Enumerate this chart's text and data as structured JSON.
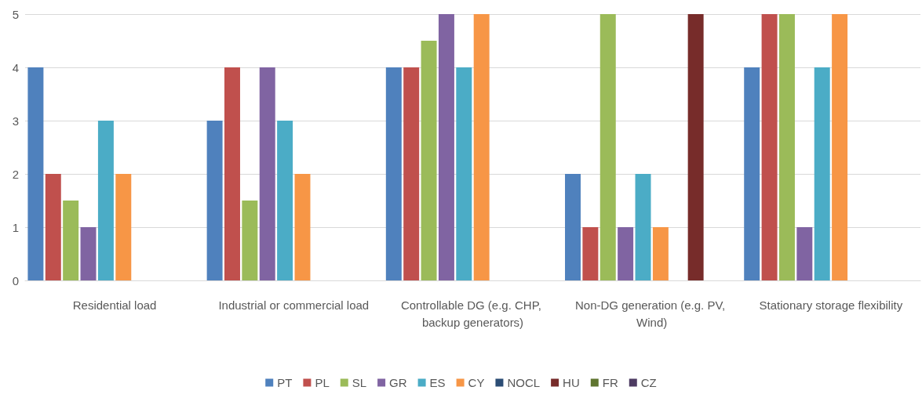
{
  "chart_data": {
    "type": "bar",
    "categories": [
      "Residential load",
      "Industrial or commercial load",
      "Controllable DG (e.g. CHP, backup generators)",
      "Non-DG generation (e.g. PV, Wind)",
      "Stationary storage flexibility"
    ],
    "series": [
      {
        "name": "PT",
        "color": "#4f81bd",
        "values": [
          4,
          3,
          4,
          2,
          4
        ]
      },
      {
        "name": "PL",
        "color": "#c0504d",
        "values": [
          2,
          4,
          4,
          1,
          5
        ]
      },
      {
        "name": "SL",
        "color": "#9bbb59",
        "values": [
          1.5,
          1.5,
          4.5,
          5,
          5
        ]
      },
      {
        "name": "GR",
        "color": "#8064a2",
        "values": [
          1,
          4,
          5,
          1,
          1
        ]
      },
      {
        "name": "ES",
        "color": "#4bacc6",
        "values": [
          3,
          3,
          4,
          2,
          4
        ]
      },
      {
        "name": "CY",
        "color": "#f79646",
        "values": [
          2,
          2,
          5,
          1,
          5
        ]
      },
      {
        "name": "NOCL",
        "color": "#2c4d75",
        "values": [
          null,
          null,
          null,
          null,
          null
        ]
      },
      {
        "name": "HU",
        "color": "#772c2a",
        "values": [
          null,
          null,
          null,
          5,
          null
        ]
      },
      {
        "name": "FR",
        "color": "#5f7530",
        "values": [
          null,
          null,
          null,
          null,
          null
        ]
      },
      {
        "name": "CZ",
        "color": "#4d3b62",
        "values": [
          null,
          null,
          null,
          null,
          null
        ]
      }
    ],
    "ylim": [
      0,
      5
    ],
    "yticks": [
      0,
      1,
      2,
      3,
      4,
      5
    ],
    "grid": "y",
    "legend": "bottom"
  }
}
